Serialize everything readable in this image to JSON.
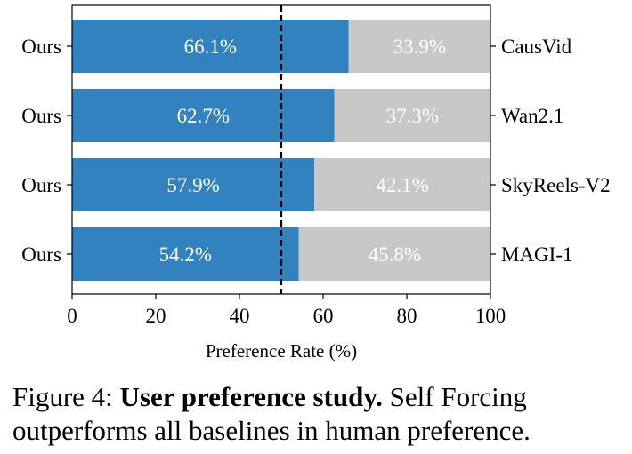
{
  "chart_data": {
    "type": "bar",
    "orientation": "horizontal-stacked",
    "left_labels": [
      "Ours",
      "Ours",
      "Ours",
      "Ours"
    ],
    "categories": [
      "CausVid",
      "Wan2.1",
      "SkyReels-V2",
      "MAGI-1"
    ],
    "series": [
      {
        "name": "Ours",
        "values": [
          66.1,
          62.7,
          57.9,
          54.2
        ],
        "labels": [
          "66.1%",
          "62.7%",
          "57.9%",
          "54.2%"
        ],
        "color": "#3182bf"
      },
      {
        "name": "Baseline",
        "values": [
          33.9,
          37.3,
          42.1,
          45.8
        ],
        "labels": [
          "33.9%",
          "37.3%",
          "42.1%",
          "45.8%"
        ],
        "color": "#c8c8c8"
      }
    ],
    "xlabel": "Preference Rate (%)",
    "xlim": [
      0,
      100
    ],
    "xticks": [
      "0",
      "20",
      "40",
      "60",
      "80",
      "100"
    ],
    "reference_line": 50
  },
  "caption": {
    "prefix": "Figure 4: ",
    "bold": "User preference study.",
    "rest": " Self Forcing outperforms all baselines in human preference."
  }
}
